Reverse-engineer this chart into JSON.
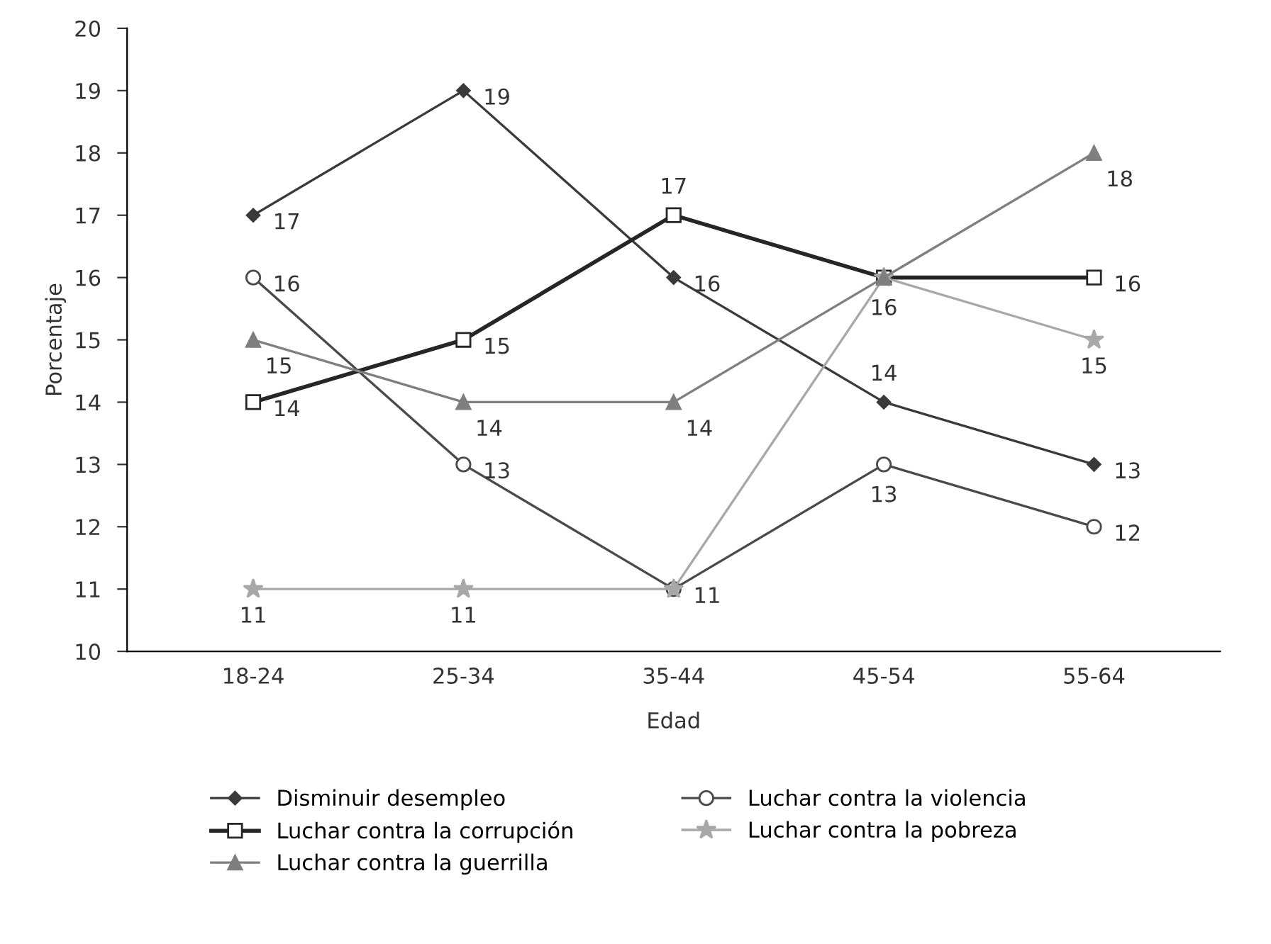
{
  "chart_data": {
    "type": "line",
    "xlabel": "Edad",
    "ylabel": "Porcentaje",
    "categories": [
      "18-24",
      "25-34",
      "35-44",
      "45-54",
      "55-64"
    ],
    "ylim": [
      10,
      20
    ],
    "yticks": [
      10,
      11,
      12,
      13,
      14,
      15,
      16,
      17,
      18,
      19,
      20
    ],
    "grid": false,
    "legend": "bottom",
    "series": [
      {
        "name": "Disminuir desempleo",
        "color": "#3a3a3a",
        "marker": "diamond",
        "values": [
          17,
          19,
          16,
          14,
          13
        ],
        "value_labels": [
          "17",
          "19",
          "16",
          "14",
          "13"
        ]
      },
      {
        "name": "Luchar contra la corrupción",
        "color": "#262626",
        "marker": "square",
        "values": [
          14,
          15,
          17,
          16,
          16
        ],
        "value_labels": [
          "14",
          "15",
          "17",
          "16",
          "16"
        ]
      },
      {
        "name": "Luchar contra la guerrilla",
        "color": "#7f7f7f",
        "marker": "triangle",
        "values": [
          15,
          14,
          14,
          16,
          18
        ],
        "value_labels": [
          "15",
          "14",
          "14",
          null,
          "18"
        ]
      },
      {
        "name": "Luchar contra la violencia",
        "color": "#4a4a4a",
        "marker": "circle",
        "values": [
          16,
          13,
          11,
          13,
          12
        ],
        "value_labels": [
          "16",
          "13",
          "11",
          "13",
          "12"
        ]
      },
      {
        "name": "Luchar contra la pobreza",
        "color": "#a8a8a8",
        "marker": "star",
        "values": [
          11,
          11,
          11,
          16,
          15
        ],
        "value_labels": [
          "11",
          "11",
          null,
          null,
          "15"
        ]
      }
    ]
  }
}
